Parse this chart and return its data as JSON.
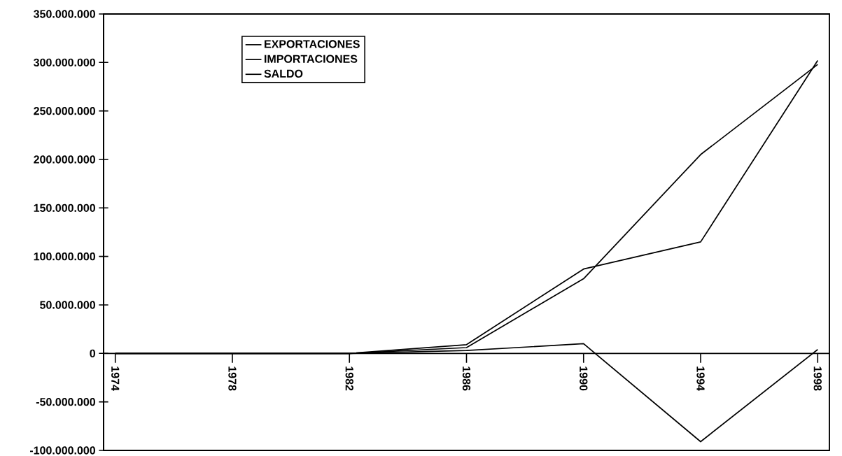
{
  "chart_data": {
    "type": "line",
    "x": [
      1974,
      1978,
      1982,
      1986,
      1990,
      1994,
      1998
    ],
    "series": [
      {
        "name": "EXPORTACIONES",
        "color": "#000000",
        "values": [
          0,
          0,
          0,
          9000000,
          87000000,
          115000000,
          302000000
        ]
      },
      {
        "name": "IMPORTACIONES",
        "color": "#000000",
        "values": [
          0,
          0,
          0,
          6000000,
          77000000,
          205000000,
          298000000
        ]
      },
      {
        "name": "SALDO",
        "color": "#000000",
        "values": [
          0,
          0,
          0,
          3000000,
          10000000,
          -91000000,
          4000000
        ]
      }
    ],
    "xlim": [
      1973.6,
      1998.4
    ],
    "xticks": [
      1974,
      1978,
      1982,
      1986,
      1990,
      1994,
      1998
    ],
    "ylim": [
      -100000000,
      350000000
    ],
    "yticks": [
      {
        "value": -100000000,
        "label": "-100.000.000"
      },
      {
        "value": -50000000,
        "label": "-50.000.000"
      },
      0,
      {
        "value": 50000000,
        "label": "50.000.000"
      },
      {
        "value": 100000000,
        "label": "100.000.000"
      },
      {
        "value": 150000000,
        "label": "150.000.000"
      },
      {
        "value": 200000000,
        "label": "200.000.000"
      },
      {
        "value": 250000000,
        "label": "250.000.000"
      },
      {
        "value": 300000000,
        "label": "300.000.000"
      },
      {
        "value": 350000000,
        "label": "350.000.000"
      }
    ],
    "grid": false,
    "legend": "top left",
    "marker": "none",
    "line_style": "solid"
  }
}
